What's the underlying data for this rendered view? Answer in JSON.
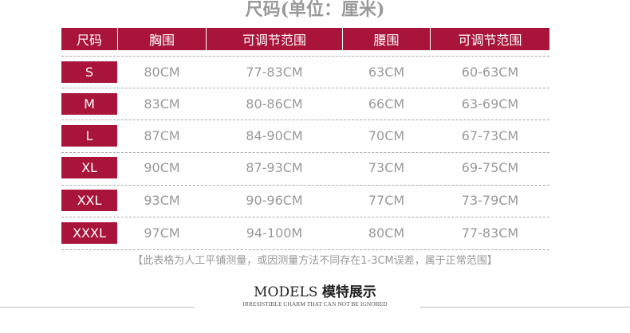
{
  "title": "尺码(单位：厘米)",
  "headers": [
    "尺码",
    "胸围",
    "可调节范围",
    "腰围",
    "可调节范围"
  ],
  "rows": [
    [
      "S",
      "80CM",
      "77-83CM",
      "63CM",
      "60-63CM"
    ],
    [
      "M",
      "83CM",
      "80-86CM",
      "66CM",
      "63-69CM"
    ],
    [
      "L",
      "87CM",
      "84-90CM",
      "70CM",
      "67-73CM"
    ],
    [
      "XL",
      "90CM",
      "87-93CM",
      "73CM",
      "69-75CM"
    ],
    [
      "XXL",
      "93CM",
      "90-96CM",
      "77CM",
      "73-79CM"
    ],
    [
      "XXXL",
      "97CM",
      "94-100M",
      "80CM",
      "77-83CM"
    ]
  ],
  "note": "【此表格为人工平铺测量，或因测量方法不同存在1-3CM误差，属于正常范围】",
  "models": {
    "en": "MODELS",
    "cn": "模特展示",
    "subtitle": "IRRESISTIBLE CHARM THAT CAN NOT BE IGNORED"
  },
  "colors": {
    "accent": "#a8143a",
    "text": "#999999"
  }
}
